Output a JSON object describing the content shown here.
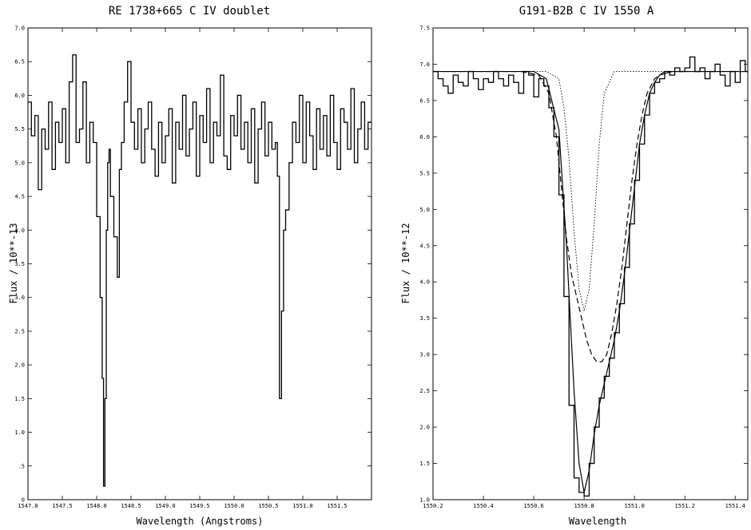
{
  "chart_data": [
    {
      "type": "line",
      "title": "RE 1738+665 C IV doublet",
      "xlabel": "Wavelength (Angstroms)",
      "ylabel": "Flux / 10**-13",
      "xlim": [
        1547.0,
        1552.0
      ],
      "ylim": [
        0,
        7.0
      ],
      "xticks": [
        1547.0,
        1547.5,
        1548.0,
        1548.5,
        1549.0,
        1549.5,
        1550.0,
        1550.5,
        1551.0,
        1551.5
      ],
      "xtick_labels": [
        "1547.0",
        "1547.5",
        "1548.0",
        "1548.5",
        "1549.0",
        "1549.5",
        "1550.0",
        "1550.5",
        "1551.0",
        "1551.5"
      ],
      "yticks": [
        0,
        0.5,
        1.0,
        1.5,
        2.0,
        2.5,
        3.0,
        3.5,
        4.0,
        4.5,
        5.0,
        5.5,
        6.0,
        6.5,
        7.0
      ],
      "ytick_labels": [
        "0",
        ".5",
        "1.0",
        "1.5",
        "2.0",
        "2.5",
        "3.0",
        "3.5",
        "4.0",
        "4.5",
        "5.0",
        "5.5",
        "6.0",
        "6.5",
        "7.0"
      ],
      "series": [
        {
          "style": "histogram",
          "x": [
            1547.0,
            1547.05,
            1547.1,
            1547.15,
            1547.2,
            1547.25,
            1547.3,
            1547.35,
            1547.4,
            1547.45,
            1547.5,
            1547.55,
            1547.6,
            1547.65,
            1547.7,
            1547.75,
            1547.8,
            1547.85,
            1547.9,
            1547.95,
            1548.0,
            1548.05,
            1548.08,
            1548.1,
            1548.12,
            1548.14,
            1548.16,
            1548.18,
            1548.2,
            1548.25,
            1548.3,
            1548.33,
            1548.36,
            1548.4,
            1548.45,
            1548.5,
            1548.55,
            1548.6,
            1548.65,
            1548.7,
            1548.75,
            1548.8,
            1548.85,
            1548.9,
            1548.95,
            1549.0,
            1549.05,
            1549.1,
            1549.15,
            1549.2,
            1549.25,
            1549.3,
            1549.35,
            1549.4,
            1549.45,
            1549.5,
            1549.55,
            1549.6,
            1549.65,
            1549.7,
            1549.75,
            1549.8,
            1549.85,
            1549.9,
            1549.95,
            1550.0,
            1550.05,
            1550.1,
            1550.15,
            1550.2,
            1550.25,
            1550.3,
            1550.35,
            1550.4,
            1550.45,
            1550.5,
            1550.55,
            1550.6,
            1550.63,
            1550.66,
            1550.69,
            1550.72,
            1550.75,
            1550.8,
            1550.85,
            1550.9,
            1550.95,
            1551.0,
            1551.05,
            1551.1,
            1551.15,
            1551.2,
            1551.25,
            1551.3,
            1551.35,
            1551.4,
            1551.45,
            1551.5,
            1551.55,
            1551.6,
            1551.65,
            1551.7,
            1551.75,
            1551.8,
            1551.85,
            1551.9,
            1551.95
          ],
          "y": [
            5.9,
            5.4,
            5.7,
            4.6,
            5.5,
            5.2,
            5.9,
            4.9,
            5.6,
            5.3,
            5.8,
            5.0,
            6.2,
            6.6,
            5.3,
            5.5,
            6.2,
            5.0,
            5.6,
            5.3,
            4.2,
            3.0,
            1.8,
            0.2,
            1.5,
            4.0,
            5.0,
            5.2,
            4.5,
            3.9,
            3.3,
            4.9,
            5.3,
            5.9,
            6.5,
            5.6,
            5.2,
            5.8,
            5.0,
            5.5,
            5.9,
            5.2,
            4.8,
            5.6,
            5.0,
            5.4,
            5.8,
            4.7,
            5.6,
            5.2,
            6.0,
            5.1,
            5.5,
            5.9,
            4.8,
            5.7,
            5.3,
            6.1,
            5.0,
            5.6,
            5.4,
            6.3,
            5.1,
            4.9,
            5.7,
            5.4,
            6.0,
            5.2,
            5.6,
            5.0,
            5.8,
            4.7,
            5.5,
            5.9,
            5.1,
            5.6,
            5.2,
            5.3,
            4.8,
            1.5,
            2.8,
            4.0,
            4.3,
            5.0,
            5.6,
            5.3,
            6.0,
            5.0,
            5.9,
            5.4,
            4.9,
            5.8,
            5.2,
            5.7,
            5.1,
            6.0,
            5.3,
            4.9,
            5.8,
            5.6,
            5.2,
            6.1,
            5.0,
            5.5,
            5.9,
            5.2,
            5.6
          ]
        }
      ]
    },
    {
      "type": "line",
      "title": "G191-B2B C IV 1550 A",
      "xlabel": "Wavelength",
      "ylabel": "Flux / 10**-12",
      "xlim": [
        1550.2,
        1551.45
      ],
      "ylim": [
        1.0,
        7.5
      ],
      "xticks": [
        1550.2,
        1550.4,
        1550.6,
        1550.8,
        1551.0,
        1551.2,
        1551.4
      ],
      "xtick_labels": [
        "1550.2",
        "1550.4",
        "1550.6",
        "1550.8",
        "1551.0",
        "1551.2",
        "1551.4"
      ],
      "yticks": [
        1.0,
        1.5,
        2.0,
        2.5,
        3.0,
        3.5,
        4.0,
        4.5,
        5.0,
        5.5,
        6.0,
        6.5,
        7.0,
        7.5
      ],
      "ytick_labels": [
        "1.0",
        "1.5",
        "2.0",
        "2.5",
        "3.0",
        "3.5",
        "4.0",
        "4.5",
        "5.0",
        "5.5",
        "6.0",
        "6.5",
        "7.0",
        "7.5"
      ],
      "series": [
        {
          "style": "histogram",
          "x": [
            1550.2,
            1550.22,
            1550.24,
            1550.26,
            1550.28,
            1550.3,
            1550.32,
            1550.34,
            1550.36,
            1550.38,
            1550.4,
            1550.42,
            1550.44,
            1550.46,
            1550.48,
            1550.5,
            1550.52,
            1550.54,
            1550.56,
            1550.58,
            1550.6,
            1550.62,
            1550.64,
            1550.66,
            1550.68,
            1550.7,
            1550.72,
            1550.74,
            1550.76,
            1550.78,
            1550.8,
            1550.82,
            1550.84,
            1550.86,
            1550.88,
            1550.9,
            1550.92,
            1550.94,
            1550.96,
            1550.98,
            1551.0,
            1551.02,
            1551.04,
            1551.06,
            1551.08,
            1551.1,
            1551.12,
            1551.14,
            1551.16,
            1551.18,
            1551.2,
            1551.22,
            1551.24,
            1551.26,
            1551.28,
            1551.3,
            1551.32,
            1551.34,
            1551.36,
            1551.38,
            1551.4,
            1551.42,
            1551.44
          ],
          "y": [
            6.9,
            6.8,
            6.7,
            6.6,
            6.85,
            6.75,
            6.7,
            6.9,
            6.8,
            6.65,
            6.8,
            6.75,
            6.9,
            6.8,
            6.7,
            6.85,
            6.75,
            6.6,
            6.9,
            6.85,
            6.55,
            6.8,
            6.7,
            6.4,
            6.0,
            5.2,
            3.8,
            2.3,
            1.3,
            1.1,
            1.05,
            1.5,
            2.0,
            2.4,
            2.7,
            2.95,
            3.3,
            3.7,
            4.2,
            4.8,
            5.4,
            5.9,
            6.3,
            6.6,
            6.75,
            6.8,
            6.9,
            6.85,
            6.95,
            6.9,
            6.95,
            7.1,
            6.9,
            6.95,
            6.8,
            6.9,
            7.0,
            6.85,
            6.7,
            6.9,
            6.75,
            7.05,
            6.9
          ]
        },
        {
          "style": "solid",
          "x": [
            1550.2,
            1550.5,
            1550.6,
            1550.65,
            1550.7,
            1550.73,
            1550.76,
            1550.78,
            1550.8,
            1550.82,
            1550.84,
            1550.86,
            1550.88,
            1550.9,
            1550.92,
            1550.94,
            1550.96,
            1550.98,
            1551.0,
            1551.02,
            1551.04,
            1551.06,
            1551.08,
            1551.1,
            1551.15,
            1551.2,
            1551.3,
            1551.45
          ],
          "y": [
            6.9,
            6.9,
            6.9,
            6.8,
            6.1,
            4.5,
            2.5,
            1.5,
            1.1,
            1.4,
            1.9,
            2.3,
            2.6,
            2.9,
            3.2,
            3.6,
            4.1,
            4.7,
            5.3,
            5.9,
            6.3,
            6.6,
            6.75,
            6.85,
            6.9,
            6.9,
            6.9,
            6.9
          ]
        },
        {
          "style": "dashed",
          "x": [
            1550.2,
            1550.55,
            1550.62,
            1550.66,
            1550.69,
            1550.71,
            1550.73,
            1550.75,
            1550.77,
            1550.79,
            1550.81,
            1550.83,
            1550.85,
            1550.87,
            1550.89,
            1550.91,
            1550.93,
            1550.95,
            1550.97,
            1550.99,
            1551.01,
            1551.03,
            1551.05,
            1551.08,
            1551.12,
            1551.2,
            1551.45
          ],
          "y": [
            6.9,
            6.9,
            6.85,
            6.6,
            6.0,
            5.3,
            4.6,
            4.1,
            3.8,
            3.5,
            3.2,
            3.0,
            2.9,
            2.9,
            3.0,
            3.3,
            3.7,
            4.2,
            4.8,
            5.4,
            5.9,
            6.3,
            6.6,
            6.8,
            6.9,
            6.9,
            6.9
          ]
        },
        {
          "style": "dotted",
          "x": [
            1550.2,
            1550.65,
            1550.7,
            1550.72,
            1550.74,
            1550.76,
            1550.78,
            1550.8,
            1550.82,
            1550.84,
            1550.86,
            1550.88,
            1550.92,
            1551.45
          ],
          "y": [
            6.9,
            6.9,
            6.8,
            6.4,
            5.7,
            4.7,
            3.9,
            3.6,
            3.9,
            4.8,
            5.9,
            6.6,
            6.9,
            6.9
          ]
        }
      ]
    }
  ]
}
